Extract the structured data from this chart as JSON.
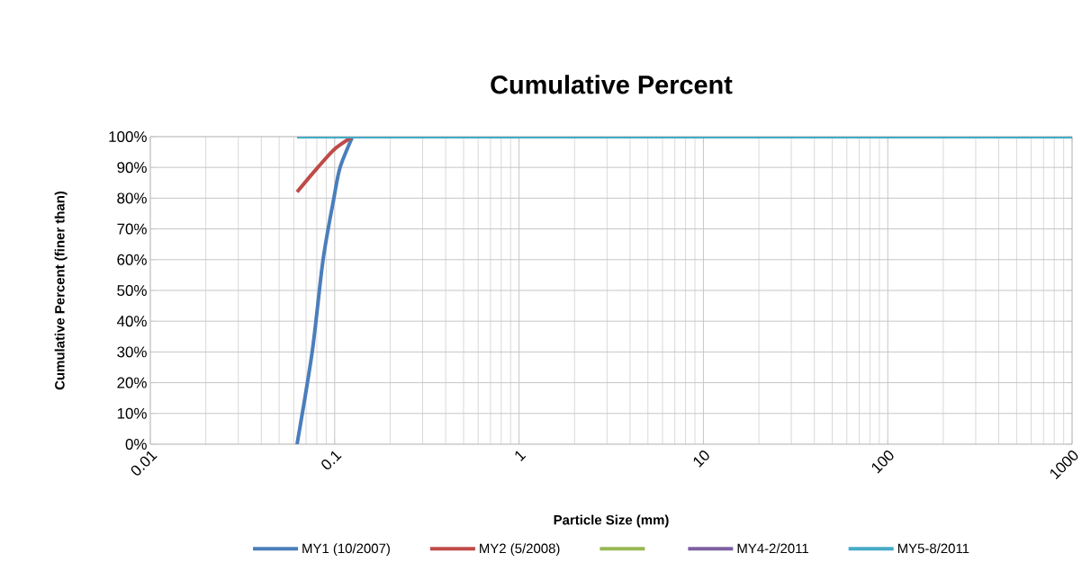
{
  "chart_data": {
    "type": "line",
    "title": "Cumulative Percent",
    "xlabel": "Particle Size (mm)",
    "ylabel": "Cumulative Percent (finer than)",
    "log": "x",
    "grid": true,
    "legend": "bottom",
    "marker": "none",
    "line_style": "solid",
    "xlim": [
      0.01,
      1000
    ],
    "xticks": [
      0.01,
      0.1,
      1,
      10,
      100,
      1000
    ],
    "ylim": [
      0,
      100
    ],
    "yticks": [
      {
        "value": 0,
        "label": "0%"
      },
      {
        "value": 10,
        "label": "10%"
      },
      {
        "value": 20,
        "label": "20%"
      },
      {
        "value": 30,
        "label": "30%"
      },
      {
        "value": 40,
        "label": "40%"
      },
      {
        "value": 50,
        "label": "50%"
      },
      {
        "value": 60,
        "label": "60%"
      },
      {
        "value": 70,
        "label": "70%"
      },
      {
        "value": 80,
        "label": "80%"
      },
      {
        "value": 90,
        "label": "90%"
      },
      {
        "value": 100,
        "label": "100%"
      }
    ],
    "series": [
      {
        "name": "MY1 (10/2007)",
        "color": "#4a7ebb",
        "x": [
          0.0625,
          0.0755,
          0.0865,
          0.099,
          0.107,
          0.125
        ],
        "values": [
          0,
          30,
          60,
          80,
          90,
          100
        ]
      },
      {
        "name": "MY2 (5/2008)",
        "color": "#be4b48",
        "x": [
          0.0625,
          0.081,
          0.1,
          0.125
        ],
        "values": [
          82,
          90,
          96,
          100
        ]
      },
      {
        "color": "#98b954"
      },
      {
        "name": "MY4-2/2011",
        "color": "#7d60a0"
      },
      {
        "name": "MY5-8/2011",
        "color": "#46aac5",
        "x": [
          0.0625,
          1000
        ],
        "values": [
          100,
          100
        ]
      }
    ]
  }
}
